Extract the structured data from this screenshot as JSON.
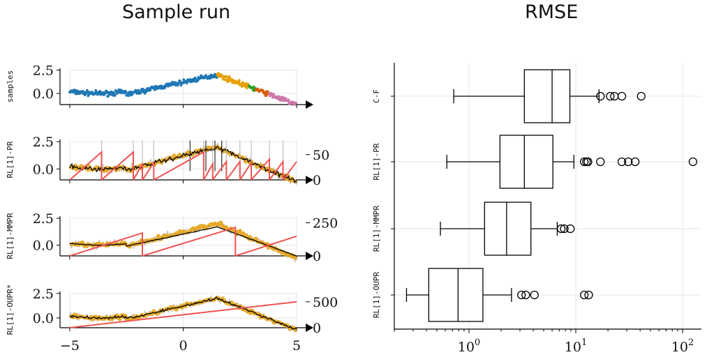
{
  "titles": {
    "left": "Sample run",
    "right": "RMSE"
  },
  "colors": {
    "blue": "#1f77b4",
    "orange": "#e69f00",
    "green": "#2ca02c",
    "rust": "#d55e00",
    "pink": "#cc79a7",
    "gold": "#e5a00d",
    "red": "#ef5350",
    "black": "#000000",
    "grey": "#bdbdbd",
    "grid": "#e6e6e6"
  },
  "chart_data": [
    {
      "type": "scatter",
      "panel": "samples",
      "ylabel": "samples",
      "x_range": [
        -5,
        5
      ],
      "ylim": [
        -1.2,
        2.7
      ],
      "yticks": [
        "2.5",
        "0.0"
      ],
      "xticks": [
        "−5",
        "0",
        "5"
      ],
      "segments": [
        {
          "color": "blue",
          "x_start": -5.0,
          "x_end": 1.5
        },
        {
          "color": "orange",
          "x_start": 1.5,
          "x_end": 2.9
        },
        {
          "color": "green",
          "x_start": 2.9,
          "x_end": 3.2
        },
        {
          "color": "rust",
          "x_start": 3.2,
          "x_end": 3.8
        },
        {
          "color": "pink",
          "x_start": 3.8,
          "x_end": 5.0
        }
      ]
    },
    {
      "type": "line",
      "panel": "RL[1]-PR",
      "ylabel": "RL[1]-PR",
      "ylim": [
        -1.0,
        2.7
      ],
      "yticks": [
        "2.5",
        "0.0"
      ],
      "y2ticks": [
        "50",
        "0"
      ],
      "y2lim": [
        0,
        80
      ],
      "resets": [
        -3.6,
        -2.2,
        -1.8,
        -1.3,
        0.9,
        1.3,
        1.9,
        2.5,
        3.0,
        3.8,
        4.4
      ],
      "sawtooth_peak": 55
    },
    {
      "type": "line",
      "panel": "RL[1]-MMPR",
      "ylabel": "RL[1]-MMPR",
      "ylim": [
        -1.0,
        2.7
      ],
      "yticks": [
        "2.5",
        "0.0"
      ],
      "y2ticks": [
        "250",
        "0"
      ],
      "y2lim": [
        0,
        300
      ],
      "resets": [
        -1.8,
        2.3
      ],
      "sawtooth_peak": 200
    },
    {
      "type": "line",
      "panel": "RL[1]-OUPR*",
      "ylabel": "RL[1]-OUPR*",
      "ylim": [
        -1.0,
        2.7
      ],
      "yticks": [
        "2.5",
        "0.0"
      ],
      "y2ticks": [
        "500",
        "0"
      ],
      "y2lim": [
        0,
        700
      ],
      "ramp_end": 500
    },
    {
      "type": "box",
      "title": "RMSE",
      "xscale": "log",
      "xlim": [
        0.2,
        150
      ],
      "xticks": [
        {
          "value": 1,
          "base": "10",
          "exp": "0"
        },
        {
          "value": 10,
          "base": "10",
          "exp": "1"
        },
        {
          "value": 100,
          "base": "10",
          "exp": "2"
        }
      ],
      "categories": [
        "C-F",
        "RL[1]-PR",
        "RL[1]-MMPR",
        "RL[1]-OUPR"
      ],
      "boxes": [
        {
          "name": "C-F",
          "whislo": 0.72,
          "q1": 3.3,
          "median": 6.0,
          "q3": 8.8,
          "whishi": 16.5,
          "fliers": [
            17,
            21,
            23,
            27,
            41
          ]
        },
        {
          "name": "RL[1]-PR",
          "whislo": 0.62,
          "q1": 1.95,
          "median": 3.3,
          "q3": 6.1,
          "whishi": 9.6,
          "fliers": [
            12,
            12.6,
            13,
            17,
            27,
            31,
            36,
            125
          ]
        },
        {
          "name": "RL[1]-MMPR",
          "whislo": 0.54,
          "q1": 1.4,
          "median": 2.25,
          "q3": 3.8,
          "whishi": 6.7,
          "fliers": [
            7.3,
            7.8,
            8.9
          ]
        },
        {
          "name": "RL[1]-OUPR",
          "whislo": 0.26,
          "q1": 0.42,
          "median": 0.79,
          "q3": 1.35,
          "whishi": 2.5,
          "fliers": [
            3.1,
            3.4,
            4.1,
            12,
            13.2
          ]
        }
      ]
    }
  ]
}
